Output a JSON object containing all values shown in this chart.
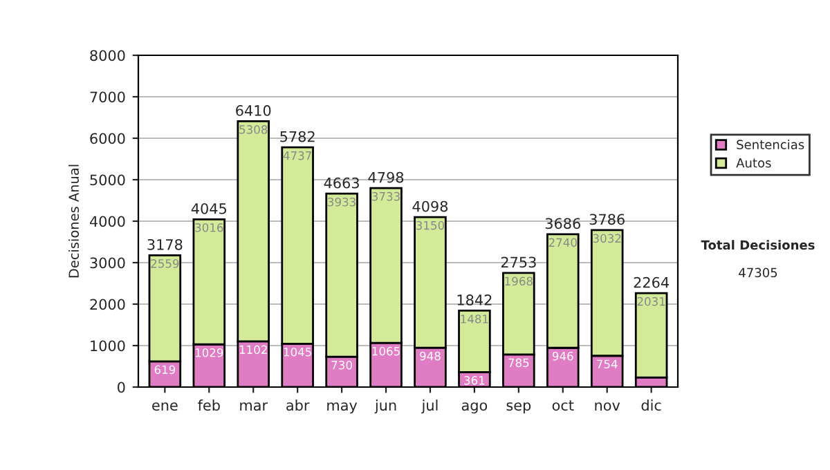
{
  "chart_data": {
    "type": "bar",
    "ylabel": "Decisiones Anual",
    "stacked": true,
    "categories": [
      "ene",
      "feb",
      "mar",
      "abr",
      "may",
      "jun",
      "jul",
      "ago",
      "sep",
      "oct",
      "nov",
      "dic"
    ],
    "series": [
      {
        "name": "Sentencias",
        "color": "#e07cc4",
        "values": [
          619,
          1029,
          1102,
          1045,
          730,
          1065,
          948,
          361,
          785,
          946,
          754,
          233
        ],
        "value_labels": [
          "619",
          "1029",
          "1102",
          "1045",
          "730",
          "1065",
          "948",
          "361",
          "785",
          "946",
          "754",
          null
        ]
      },
      {
        "name": "Autos",
        "color": "#d3eb98",
        "values": [
          2559,
          3016,
          5308,
          4737,
          3933,
          3733,
          3150,
          1481,
          1968,
          2740,
          3032,
          2031
        ],
        "value_labels": [
          "2559",
          "3016",
          "5308",
          "4737",
          "3933",
          "3733",
          "3150",
          "1481",
          "1968",
          "2740",
          "3032",
          "2031"
        ]
      }
    ],
    "totals": [
      "3178",
      "4045",
      "6410",
      "5782",
      "4663",
      "4798",
      "4098",
      "1842",
      "2753",
      "3686",
      "3786",
      "2264"
    ],
    "ylim": [
      0,
      8000
    ],
    "yticks": [
      0,
      1000,
      2000,
      3000,
      4000,
      5000,
      6000,
      7000,
      8000
    ],
    "grid": "y",
    "legend": "right",
    "annotations": [
      "Total Decisiones",
      "47305"
    ]
  }
}
